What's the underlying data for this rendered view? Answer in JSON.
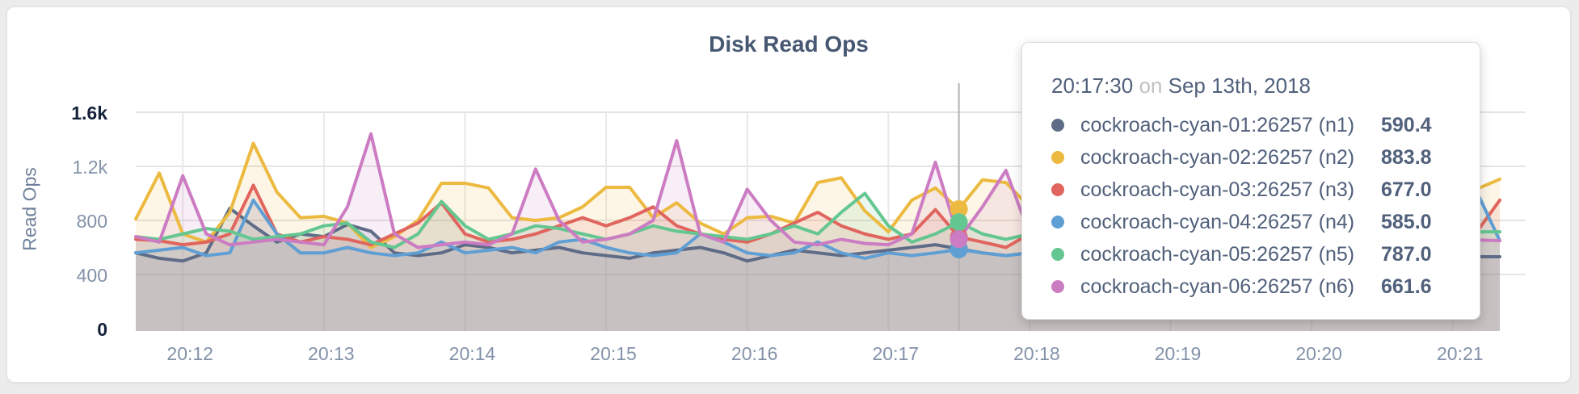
{
  "card": {
    "title": "Disk Read Ops"
  },
  "chart_data": {
    "type": "line",
    "title": "Disk Read Ops",
    "ylabel": "Read Ops",
    "xlabel": "",
    "grid": true,
    "ylim": [
      0,
      1600
    ],
    "x_start": "20:11:40",
    "x_step_seconds": 10,
    "x_ticks": [
      "20:12",
      "20:13",
      "20:14",
      "20:15",
      "20:16",
      "20:17",
      "20:18",
      "20:19",
      "20:20",
      "20:21"
    ],
    "y_ticks": [
      {
        "label": "0",
        "value": 0,
        "emphasis": true
      },
      {
        "label": "400",
        "value": 400,
        "emphasis": false
      },
      {
        "label": "800",
        "value": 800,
        "emphasis": false
      },
      {
        "label": "1.2k",
        "value": 1200,
        "emphasis": false
      },
      {
        "label": "1.6k",
        "value": 1600,
        "emphasis": true
      }
    ],
    "crosshair_index": 35,
    "series": [
      {
        "name": "cockroach-cyan-01:26257 (n1)",
        "color": "#5f6c87",
        "values": [
          560,
          520,
          500,
          560,
          890,
          760,
          640,
          700,
          680,
          770,
          720,
          560,
          540,
          560,
          620,
          600,
          560,
          580,
          600,
          560,
          540,
          520,
          560,
          580,
          600,
          560,
          500,
          540,
          580,
          560,
          540,
          560,
          580,
          600,
          620,
          590.4,
          560,
          540,
          560,
          580,
          560,
          540,
          560,
          580,
          600,
          560,
          540,
          560,
          580,
          560,
          540,
          530,
          540,
          560,
          580,
          560,
          531,
          531,
          531
        ]
      },
      {
        "name": "cockroach-cyan-02:26257 (n2)",
        "color": "#ecba40",
        "values": [
          810,
          1150,
          700,
          640,
          860,
          1370,
          1010,
          820,
          830,
          780,
          600,
          680,
          800,
          1075,
          1075,
          1040,
          820,
          800,
          820,
          900,
          1045,
          1045,
          820,
          930,
          780,
          700,
          820,
          830,
          780,
          1080,
          1115,
          870,
          716,
          950,
          1040,
          883.8,
          1100,
          1080,
          900,
          760,
          820,
          1000,
          900,
          760,
          820,
          900,
          1000,
          860,
          760,
          820,
          950,
          1050,
          900,
          800,
          700,
          640,
          950,
          1030,
          1105
        ]
      },
      {
        "name": "cockroach-cyan-03:26257 (n3)",
        "color": "#e0655e",
        "values": [
          660,
          650,
          620,
          640,
          700,
          1060,
          700,
          640,
          680,
          660,
          620,
          700,
          780,
          930,
          700,
          640,
          660,
          700,
          760,
          820,
          760,
          820,
          900,
          760,
          700,
          660,
          640,
          700,
          780,
          860,
          760,
          700,
          660,
          700,
          880,
          677,
          640,
          600,
          700,
          760,
          700,
          660,
          700,
          760,
          820,
          700,
          660,
          700,
          760,
          700,
          660,
          640,
          660,
          700,
          640,
          600,
          610,
          710,
          950
        ]
      },
      {
        "name": "cockroach-cyan-04:26257 (n4)",
        "color": "#5f9fd4",
        "values": [
          560,
          580,
          600,
          540,
          560,
          950,
          700,
          560,
          560,
          600,
          560,
          540,
          560,
          640,
          560,
          580,
          600,
          560,
          640,
          660,
          600,
          560,
          540,
          560,
          700,
          640,
          560,
          540,
          560,
          640,
          560,
          520,
          560,
          540,
          560,
          585,
          560,
          540,
          560,
          580,
          560,
          540,
          560,
          580,
          600,
          560,
          540,
          560,
          580,
          560,
          540,
          530,
          540,
          560,
          580,
          640,
          700,
          1020,
          650
        ]
      },
      {
        "name": "cockroach-cyan-05:26257 (n5)",
        "color": "#64c690",
        "values": [
          680,
          660,
          700,
          740,
          720,
          660,
          680,
          700,
          760,
          780,
          640,
          600,
          700,
          940,
          760,
          660,
          700,
          760,
          740,
          700,
          660,
          700,
          760,
          720,
          700,
          680,
          660,
          700,
          760,
          700,
          860,
          1000,
          760,
          640,
          700,
          787,
          700,
          660,
          700,
          740,
          700,
          660,
          700,
          760,
          700,
          680,
          700,
          740,
          700,
          660,
          700,
          760,
          720,
          700,
          680,
          660,
          716,
          716,
          716
        ]
      },
      {
        "name": "cockroach-cyan-06:26257 (n6)",
        "color": "#cc7cc2",
        "values": [
          680,
          640,
          1130,
          700,
          620,
          640,
          660,
          640,
          620,
          900,
          1440,
          700,
          600,
          620,
          640,
          620,
          700,
          1180,
          800,
          640,
          660,
          700,
          800,
          1390,
          700,
          640,
          1030,
          800,
          640,
          620,
          660,
          630,
          620,
          700,
          1230,
          661.6,
          900,
          1170,
          700,
          640,
          660,
          900,
          1100,
          700,
          640,
          660,
          800,
          1000,
          700,
          640,
          660,
          900,
          1050,
          700,
          640,
          1100,
          660,
          655,
          650
        ]
      }
    ]
  },
  "tooltip": {
    "time": "20:17:30",
    "connector": "on",
    "date": "Sep 13th, 2018",
    "rows": [
      {
        "name": "cockroach-cyan-01:26257 (n1)",
        "value": "590.4",
        "color": "#5f6c87"
      },
      {
        "name": "cockroach-cyan-02:26257 (n2)",
        "value": "883.8",
        "color": "#ecba40"
      },
      {
        "name": "cockroach-cyan-03:26257 (n3)",
        "value": "677.0",
        "color": "#e0655e"
      },
      {
        "name": "cockroach-cyan-04:26257 (n4)",
        "value": "585.0",
        "color": "#5f9fd4"
      },
      {
        "name": "cockroach-cyan-05:26257 (n5)",
        "value": "787.0",
        "color": "#64c690"
      },
      {
        "name": "cockroach-cyan-06:26257 (n6)",
        "value": "661.6",
        "color": "#cc7cc2"
      }
    ]
  }
}
